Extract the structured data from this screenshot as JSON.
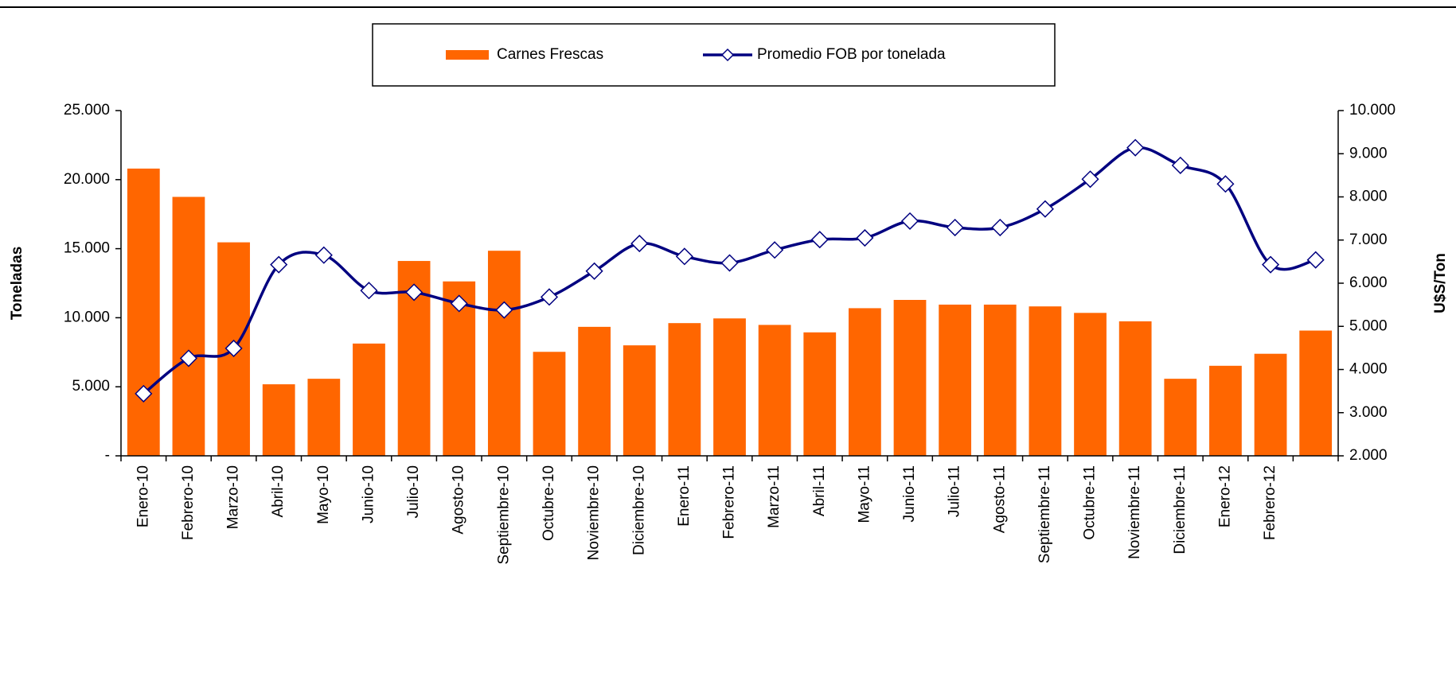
{
  "chart_data": {
    "type": "bar-line",
    "categories": [
      "Enero-10",
      "Febrero-10",
      "Marzo-10",
      "Abril-10",
      "Mayo-10",
      "Junio-10",
      "Julio-10",
      "Agosto-10",
      "Septiembre-10",
      "Octubre-10",
      "Noviembre-10",
      "Diciembre-10",
      "Enero-11",
      "Febrero-11",
      "Marzo-11",
      "Abril-11",
      "Mayo-11",
      "Junio-11",
      "Julio-11",
      "Agosto-11",
      "Septiembre-11",
      "Octubre-11",
      "Noviembre-11",
      "Diciembre-11",
      "Enero-12",
      "Febrero-12",
      null
    ],
    "series": [
      {
        "name": "Carnes Frescas",
        "color": "#ff6600",
        "type": "bar",
        "values": [
          20800,
          18750,
          15460,
          5180,
          5580,
          8130,
          14110,
          12630,
          14850,
          7530,
          9340,
          8000,
          9610,
          9950,
          9480,
          8940,
          10690,
          11290,
          10950,
          10950,
          10820,
          10350,
          9740,
          5580,
          6520,
          7390,
          9070
        ]
      },
      {
        "name": "Promedio FOB por tonelada",
        "color": "#000080",
        "type": "line",
        "axis": "y2",
        "values": [
          3440,
          4260,
          4490,
          6430,
          6650,
          5830,
          5790,
          5530,
          5380,
          5680,
          6280,
          6920,
          6620,
          6470,
          6770,
          7010,
          7050,
          7440,
          7290,
          7290,
          7720,
          8410,
          9140,
          8730,
          8300,
          6430,
          6540
        ]
      }
    ],
    "ylabel": "Toneladas",
    "y2label": "U$S/Ton",
    "ylim": [
      0,
      25000
    ],
    "yticks": [
      {
        "value": 0,
        "label": "-"
      },
      {
        "value": 5000,
        "label": "5.000"
      },
      {
        "value": 10000,
        "label": "10.000"
      },
      {
        "value": 15000,
        "label": "15.000"
      },
      {
        "value": 20000,
        "label": "20.000"
      },
      {
        "value": 25000,
        "label": "25.000"
      }
    ],
    "y2lim": [
      2000,
      10000
    ],
    "y2ticks": [
      {
        "value": 2000,
        "label": "2.000"
      },
      {
        "value": 3000,
        "label": "3.000"
      },
      {
        "value": 4000,
        "label": "4.000"
      },
      {
        "value": 5000,
        "label": "5.000"
      },
      {
        "value": 6000,
        "label": "6.000"
      },
      {
        "value": 7000,
        "label": "7.000"
      },
      {
        "value": 8000,
        "label": "8.000"
      },
      {
        "value": 9000,
        "label": "9.000"
      },
      {
        "value": 10000,
        "label": "10.000"
      }
    ]
  }
}
